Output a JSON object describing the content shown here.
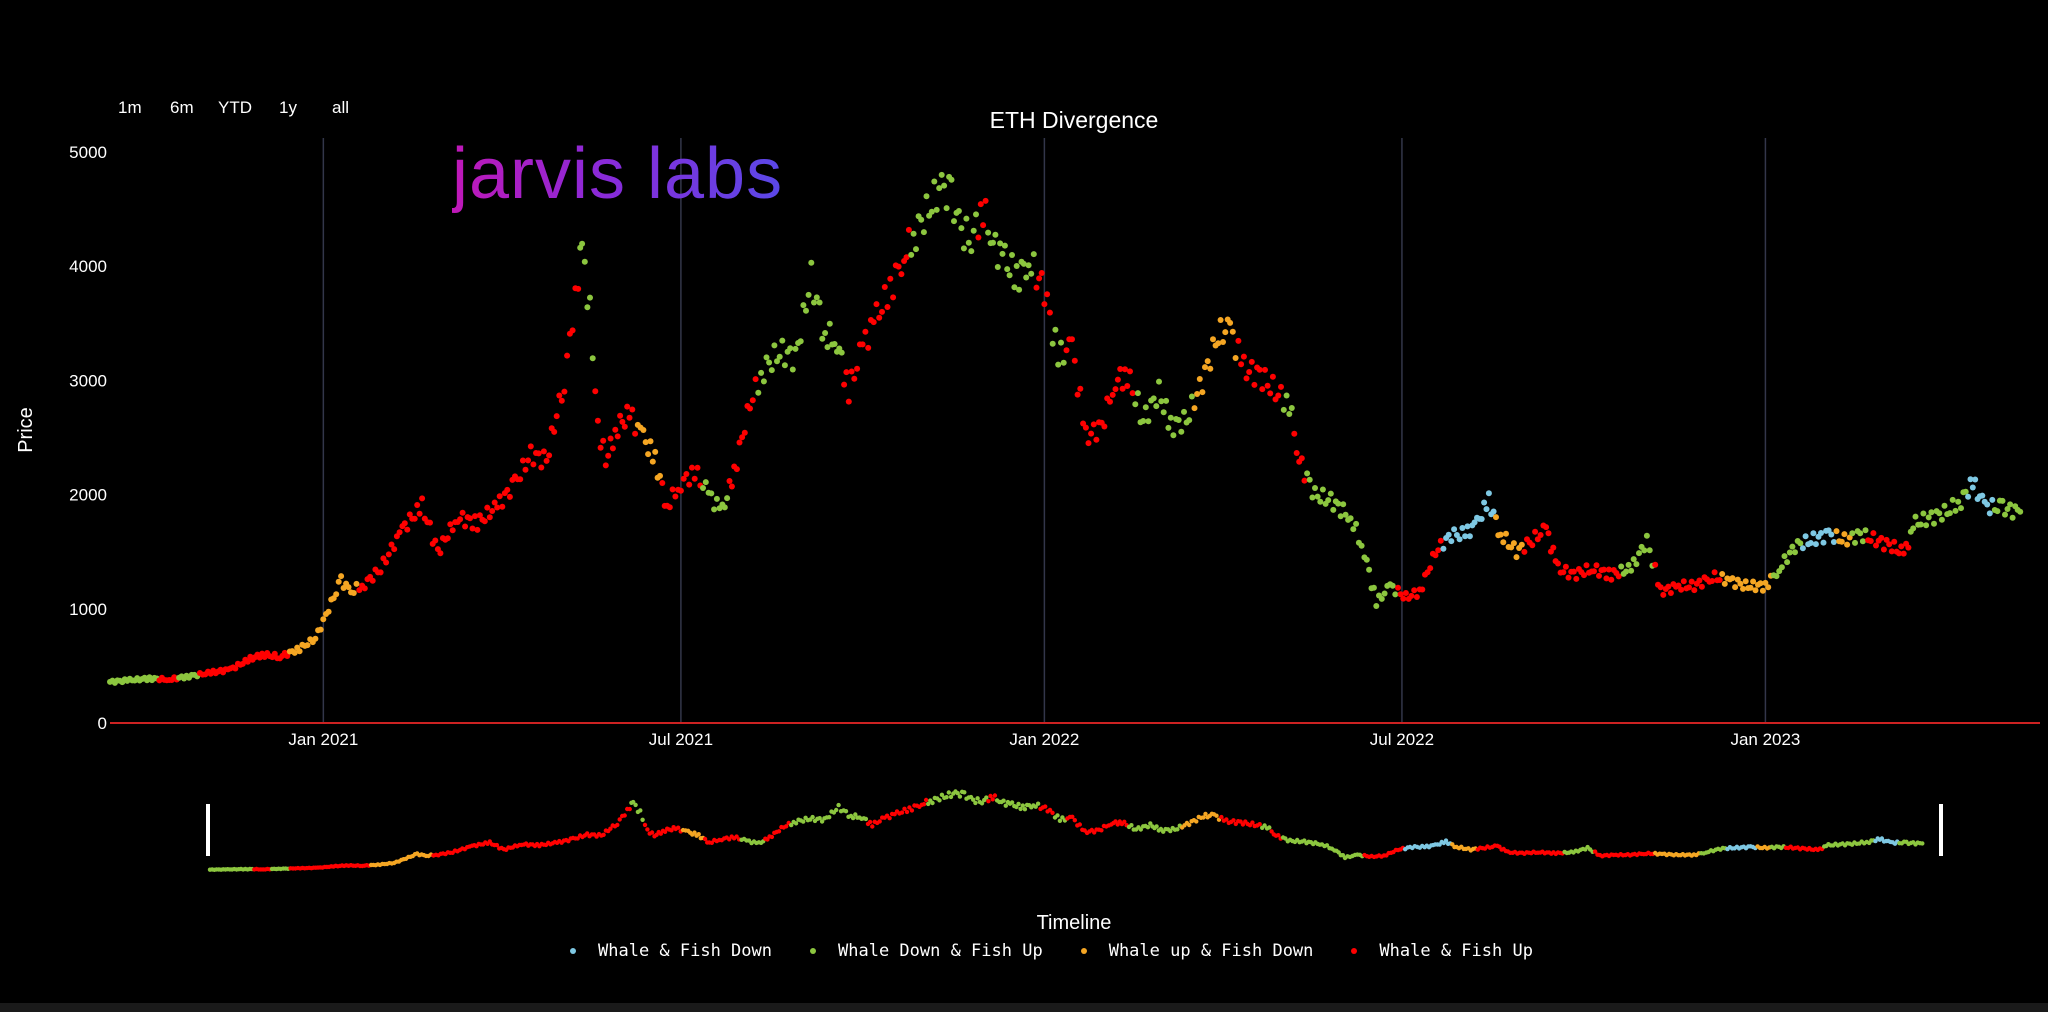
{
  "range_selector": [
    "1m",
    "6m",
    "YTD",
    "1y",
    "all"
  ],
  "logo_text": "jarvis labs",
  "colors": {
    "background": "#000000",
    "whale_fish_down": "#7ec8e3",
    "whale_down_fish_up": "#8cc63f",
    "whale_up_fish_down": "#f5a623",
    "whale_fish_up": "#ff0000",
    "axis_line": "#cc2222",
    "grid": "#33364a"
  },
  "chart_data": {
    "type": "scatter",
    "title": "ETH Divergence",
    "xlabel": "",
    "ylabel": "Price",
    "ylim": [
      0,
      5000
    ],
    "xlim": [
      "2020-09-15",
      "2023-05-20"
    ],
    "yticks": [
      0,
      1000,
      2000,
      3000,
      4000,
      5000
    ],
    "xticks": [
      {
        "date": "2021-01-01",
        "label": "Jan 2021"
      },
      {
        "date": "2021-07-01",
        "label": "Jul 2021"
      },
      {
        "date": "2022-01-01",
        "label": "Jan 2022"
      },
      {
        "date": "2022-07-01",
        "label": "Jul 2022"
      },
      {
        "date": "2023-01-01",
        "label": "Jan 2023"
      }
    ],
    "grid": "vertical",
    "legend_position": "bottom",
    "navigator_label": "Timeline",
    "series": [
      {
        "name": "Whale & Fish Down",
        "color": "#7ec8e3"
      },
      {
        "name": "Whale Down & Fish Up",
        "color": "#8cc63f"
      },
      {
        "name": "Whale up & Fish Down",
        "color": "#f5a623"
      },
      {
        "name": "Whale & Fish Up",
        "color": "#ff0000"
      }
    ],
    "points": [
      [
        "2020-09-15",
        360,
        1
      ],
      [
        "2020-09-25",
        375,
        1
      ],
      [
        "2020-10-05",
        390,
        1
      ],
      [
        "2020-10-15",
        380,
        3
      ],
      [
        "2020-10-25",
        410,
        1
      ],
      [
        "2020-11-05",
        440,
        3
      ],
      [
        "2020-11-15",
        470,
        3
      ],
      [
        "2020-11-25",
        560,
        3
      ],
      [
        "2020-12-01",
        600,
        3
      ],
      [
        "2020-12-10",
        580,
        3
      ],
      [
        "2020-12-20",
        650,
        2
      ],
      [
        "2020-12-28",
        740,
        2
      ],
      [
        "2021-01-05",
        1050,
        2
      ],
      [
        "2021-01-10",
        1250,
        2
      ],
      [
        "2021-01-15",
        1150,
        2
      ],
      [
        "2021-01-22",
        1220,
        3
      ],
      [
        "2021-01-30",
        1350,
        3
      ],
      [
        "2021-02-10",
        1700,
        3
      ],
      [
        "2021-02-20",
        1900,
        3
      ],
      [
        "2021-02-28",
        1500,
        3
      ],
      [
        "2021-03-10",
        1800,
        3
      ],
      [
        "2021-03-20",
        1750,
        3
      ],
      [
        "2021-03-30",
        1900,
        3
      ],
      [
        "2021-04-08",
        2100,
        3
      ],
      [
        "2021-04-16",
        2350,
        3
      ],
      [
        "2021-04-24",
        2300,
        3
      ],
      [
        "2021-05-03",
        3000,
        3
      ],
      [
        "2021-05-10",
        3900,
        3
      ],
      [
        "2021-05-12",
        4150,
        1
      ],
      [
        "2021-05-16",
        3600,
        1
      ],
      [
        "2021-05-20",
        2600,
        3
      ],
      [
        "2021-05-24",
        2300,
        3
      ],
      [
        "2021-05-30",
        2600,
        3
      ],
      [
        "2021-06-05",
        2700,
        3
      ],
      [
        "2021-06-12",
        2500,
        2
      ],
      [
        "2021-06-18",
        2300,
        2
      ],
      [
        "2021-06-24",
        1900,
        3
      ],
      [
        "2021-07-01",
        2100,
        3
      ],
      [
        "2021-07-08",
        2200,
        3
      ],
      [
        "2021-07-15",
        2000,
        1
      ],
      [
        "2021-07-22",
        1850,
        1
      ],
      [
        "2021-07-28",
        2200,
        3
      ],
      [
        "2021-08-05",
        2800,
        3
      ],
      [
        "2021-08-12",
        3100,
        1
      ],
      [
        "2021-08-20",
        3250,
        1
      ],
      [
        "2021-08-28",
        3200,
        1
      ],
      [
        "2021-09-05",
        3900,
        1
      ],
      [
        "2021-09-12",
        3400,
        1
      ],
      [
        "2021-09-18",
        3350,
        1
      ],
      [
        "2021-09-24",
        2900,
        3
      ],
      [
        "2021-10-01",
        3300,
        3
      ],
      [
        "2021-10-08",
        3550,
        3
      ],
      [
        "2021-10-15",
        3800,
        3
      ],
      [
        "2021-10-22",
        4100,
        3
      ],
      [
        "2021-10-28",
        4300,
        1
      ],
      [
        "2021-11-05",
        4550,
        1
      ],
      [
        "2021-11-10",
        4700,
        1
      ],
      [
        "2021-11-15",
        4600,
        1
      ],
      [
        "2021-11-20",
        4300,
        1
      ],
      [
        "2021-11-25",
        4250,
        1
      ],
      [
        "2021-12-01",
        4500,
        3
      ],
      [
        "2021-12-06",
        4200,
        1
      ],
      [
        "2021-12-12",
        4050,
        1
      ],
      [
        "2021-12-18",
        3900,
        1
      ],
      [
        "2021-12-24",
        4050,
        1
      ],
      [
        "2022-01-01",
        3800,
        3
      ],
      [
        "2022-01-08",
        3200,
        1
      ],
      [
        "2022-01-15",
        3300,
        3
      ],
      [
        "2022-01-22",
        2500,
        3
      ],
      [
        "2022-01-30",
        2600,
        3
      ],
      [
        "2022-02-06",
        3000,
        3
      ],
      [
        "2022-02-12",
        3050,
        3
      ],
      [
        "2022-02-20",
        2650,
        1
      ],
      [
        "2022-02-28",
        2900,
        1
      ],
      [
        "2022-03-06",
        2600,
        1
      ],
      [
        "2022-03-14",
        2650,
        1
      ],
      [
        "2022-03-22",
        3000,
        2
      ],
      [
        "2022-03-30",
        3400,
        2
      ],
      [
        "2022-04-05",
        3450,
        2
      ],
      [
        "2022-04-12",
        3100,
        3
      ],
      [
        "2022-04-20",
        3050,
        3
      ],
      [
        "2022-04-28",
        2900,
        3
      ],
      [
        "2022-05-05",
        2800,
        1
      ],
      [
        "2022-05-10",
        2300,
        3
      ],
      [
        "2022-05-18",
        2000,
        1
      ],
      [
        "2022-05-26",
        1950,
        1
      ],
      [
        "2022-06-05",
        1800,
        1
      ],
      [
        "2022-06-12",
        1500,
        1
      ],
      [
        "2022-06-18",
        1050,
        1
      ],
      [
        "2022-06-25",
        1200,
        1
      ],
      [
        "2022-07-03",
        1100,
        3
      ],
      [
        "2022-07-10",
        1150,
        3
      ],
      [
        "2022-07-18",
        1500,
        3
      ],
      [
        "2022-07-26",
        1650,
        0
      ],
      [
        "2022-08-02",
        1650,
        0
      ],
      [
        "2022-08-08",
        1750,
        0
      ],
      [
        "2022-08-14",
        1950,
        0
      ],
      [
        "2022-08-20",
        1650,
        2
      ],
      [
        "2022-08-28",
        1500,
        2
      ],
      [
        "2022-09-05",
        1600,
        3
      ],
      [
        "2022-09-12",
        1700,
        3
      ],
      [
        "2022-09-18",
        1350,
        3
      ],
      [
        "2022-09-26",
        1300,
        3
      ],
      [
        "2022-10-05",
        1350,
        3
      ],
      [
        "2022-10-15",
        1300,
        3
      ],
      [
        "2022-10-25",
        1350,
        1
      ],
      [
        "2022-11-02",
        1600,
        1
      ],
      [
        "2022-11-09",
        1150,
        3
      ],
      [
        "2022-11-18",
        1200,
        3
      ],
      [
        "2022-11-26",
        1200,
        3
      ],
      [
        "2022-12-05",
        1280,
        3
      ],
      [
        "2022-12-14",
        1250,
        2
      ],
      [
        "2022-12-22",
        1200,
        2
      ],
      [
        "2023-01-01",
        1200,
        2
      ],
      [
        "2023-01-08",
        1350,
        1
      ],
      [
        "2023-01-16",
        1550,
        1
      ],
      [
        "2023-01-24",
        1600,
        0
      ],
      [
        "2023-02-02",
        1650,
        0
      ],
      [
        "2023-02-10",
        1600,
        2
      ],
      [
        "2023-02-18",
        1650,
        1
      ],
      [
        "2023-02-26",
        1600,
        3
      ],
      [
        "2023-03-06",
        1550,
        3
      ],
      [
        "2023-03-12",
        1480,
        3
      ],
      [
        "2023-03-18",
        1750,
        1
      ],
      [
        "2023-03-26",
        1800,
        1
      ],
      [
        "2023-04-03",
        1850,
        1
      ],
      [
        "2023-04-10",
        1950,
        1
      ],
      [
        "2023-04-16",
        2100,
        0
      ],
      [
        "2023-04-22",
        1900,
        0
      ],
      [
        "2023-05-01",
        1880,
        1
      ],
      [
        "2023-05-10",
        1850,
        1
      ]
    ]
  }
}
